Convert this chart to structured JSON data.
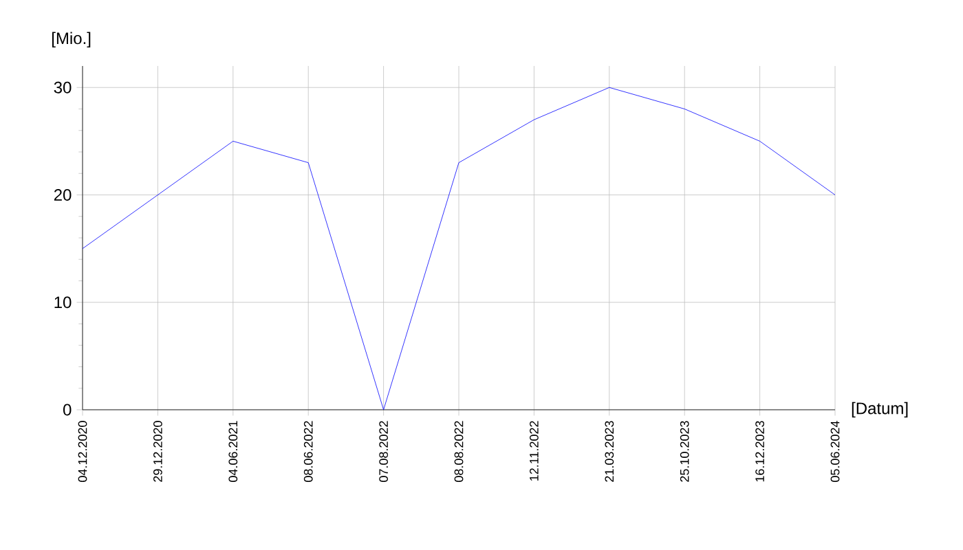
{
  "chart_data": {
    "type": "line",
    "xlabel": "[Datum]",
    "ylabel": "[Mio.]",
    "categories": [
      "04.12.2020",
      "29.12.2020",
      "04.06.2021",
      "08.06.2022",
      "07.08.2022",
      "08.08.2022",
      "12.11.2022",
      "21.03.2023",
      "25.10.2023",
      "16.12.2023",
      "05.06.2024"
    ],
    "series": [
      {
        "color": "#0000ff",
        "values": [
          15,
          20,
          25,
          23,
          0,
          23,
          27,
          30,
          28,
          25,
          20
        ]
      }
    ],
    "ylim": [
      0,
      32
    ],
    "yticks": [
      0,
      10,
      20,
      30
    ],
    "grid": true
  }
}
